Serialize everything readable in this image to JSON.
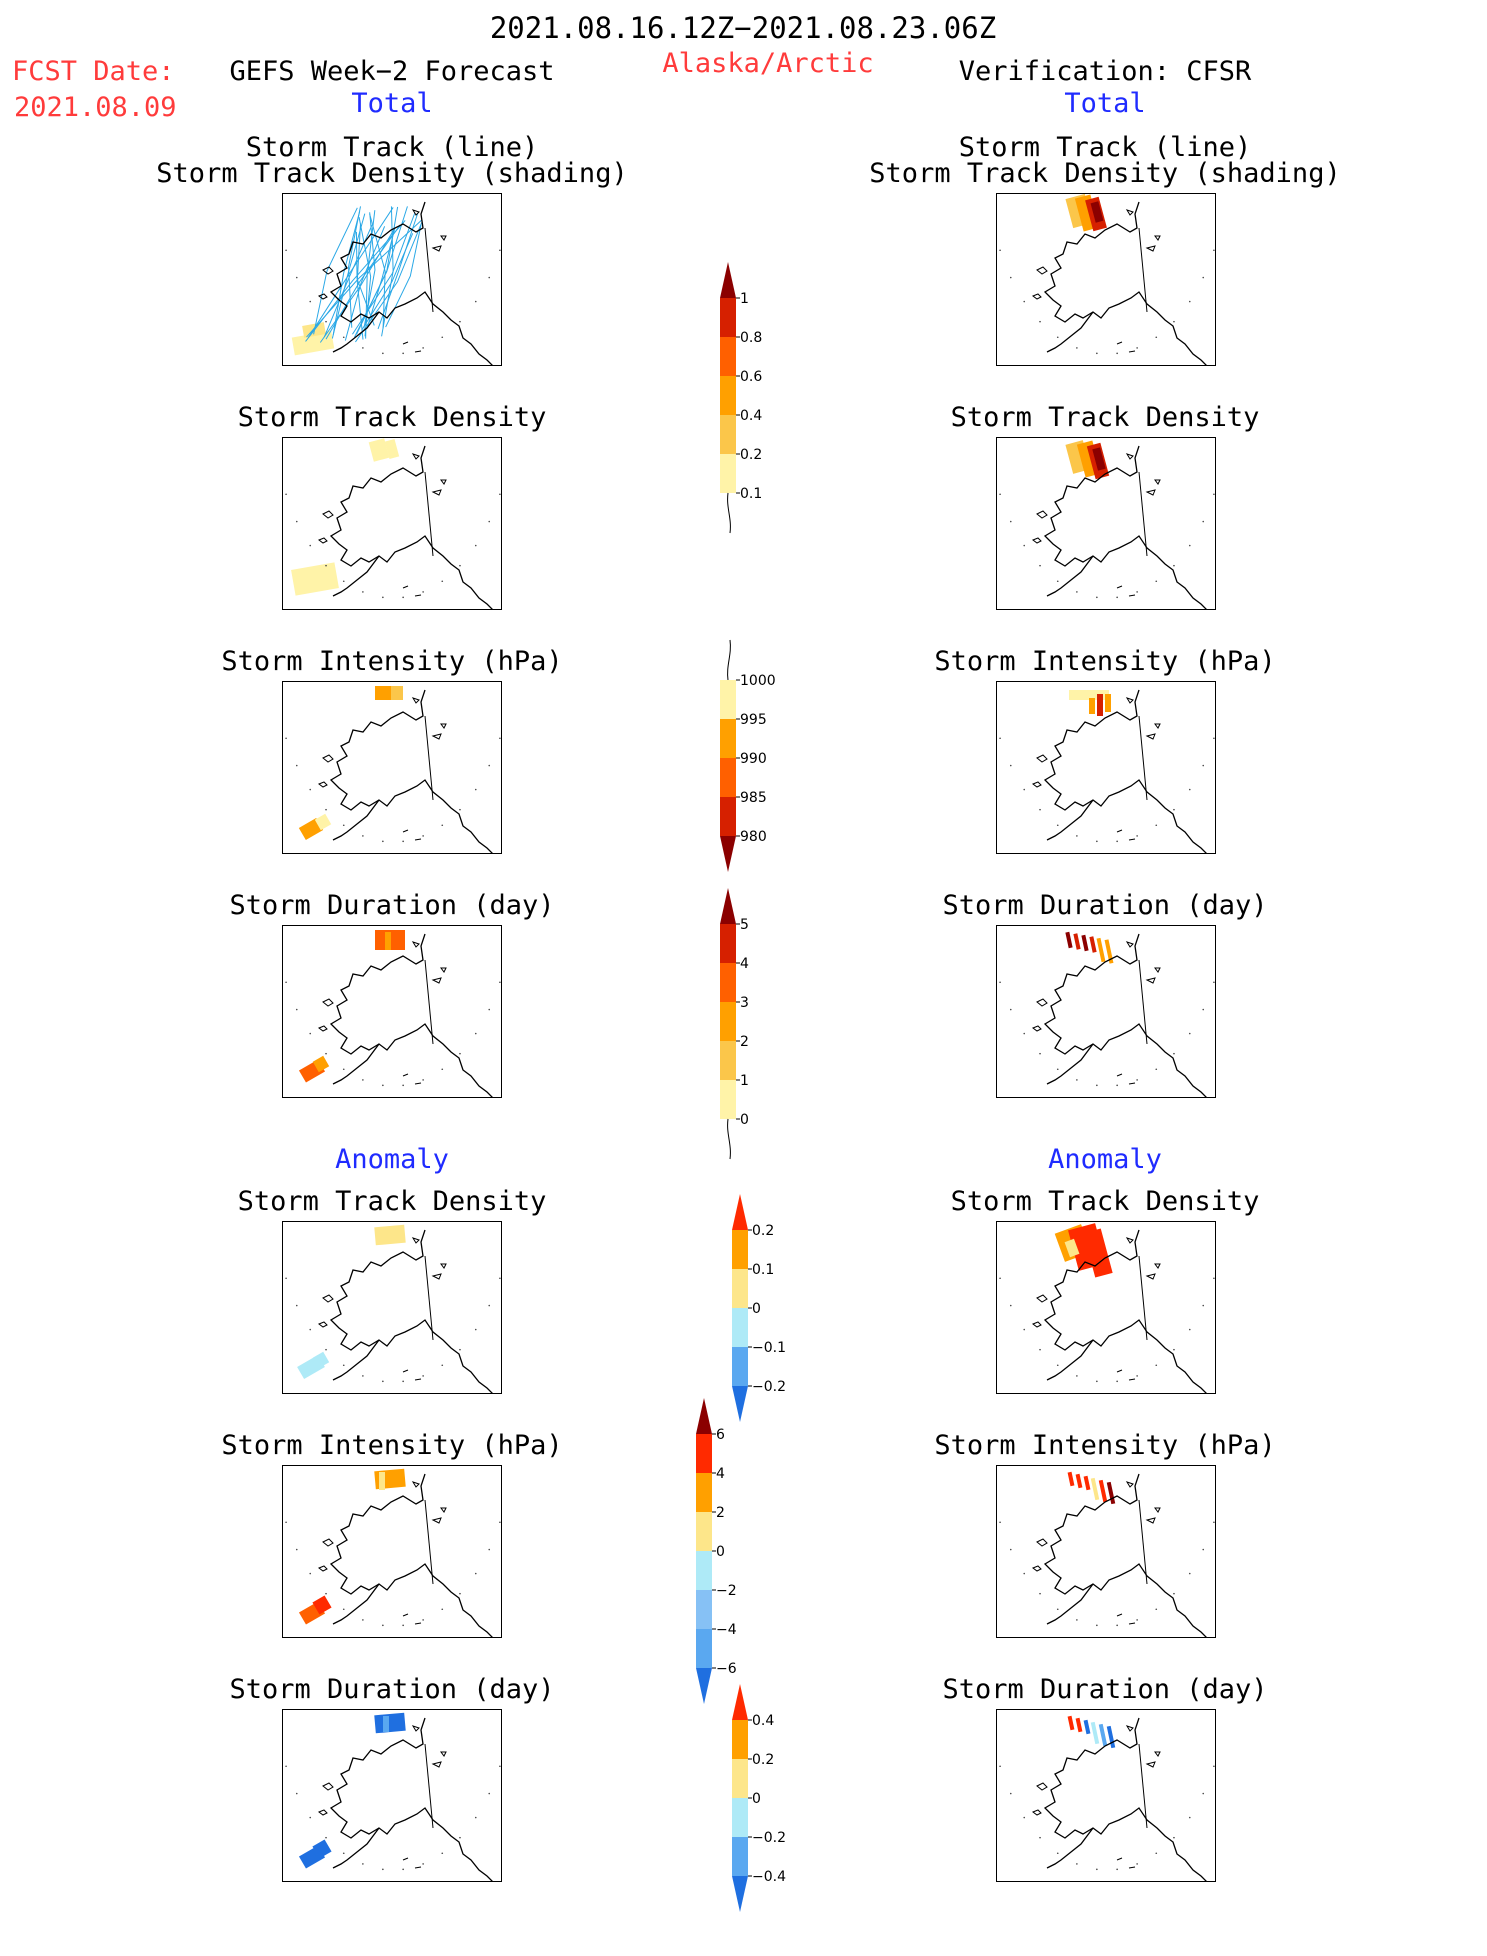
{
  "header": {
    "date_range": "2021.08.16.12Z−2021.08.23.06Z",
    "region": "Alaska/Arctic",
    "fcst_label": "FCST Date:",
    "fcst_date": "2021.08.09",
    "left_title": "GEFS Week−2 Forecast",
    "right_title": "Verification: CFSR"
  },
  "sections": {
    "total": "Total",
    "anomaly": "Anomaly"
  },
  "panel_titles": {
    "track_line": "Storm Track (line)",
    "track_shading": "Storm Track Density (shading)",
    "density": "Storm Track Density",
    "intensity": "Storm Intensity (hPa)",
    "duration": "Storm Duration (day)"
  },
  "colorbars": {
    "density_total": {
      "labels": [
        "1",
        "0.8",
        "0.6",
        "0.4",
        "0.2",
        "0.1"
      ],
      "colors": [
        "#8b0000",
        "#d62000",
        "#ff6000",
        "#ffa000",
        "#fbc64a",
        "#fff3a8"
      ]
    },
    "intensity_total": {
      "labels": [
        "1000",
        "995",
        "990",
        "985",
        "980"
      ],
      "colors": [
        "#fff3a8",
        "#ffa000",
        "#ff6000",
        "#d62000",
        "#8b0000"
      ]
    },
    "duration_total": {
      "labels": [
        "5",
        "4",
        "3",
        "2",
        "1",
        "0"
      ],
      "colors": [
        "#8b0000",
        "#d62000",
        "#ff6000",
        "#ffa000",
        "#fbc64a",
        "#fff3a8"
      ]
    },
    "density_anom": {
      "labels": [
        "0.2",
        "0.1",
        "0",
        "−0.1",
        "−0.2"
      ],
      "colors": [
        "#ff2a00",
        "#ffa000",
        "#fde68a",
        "#aeeaf7",
        "#5aa8f0",
        "#1f6fe0"
      ]
    },
    "intensity_anom": {
      "labels": [
        "6",
        "4",
        "2",
        "0",
        "−2",
        "−4",
        "−6"
      ],
      "colors": [
        "#8b0000",
        "#ff2a00",
        "#ffa000",
        "#fde68a",
        "#aeeaf7",
        "#86c1f5",
        "#5aa8f0",
        "#1f6fe0"
      ]
    },
    "duration_anom": {
      "labels": [
        "0.4",
        "0.2",
        "0",
        "−0.2",
        "−0.4"
      ],
      "colors": [
        "#ff2a00",
        "#ffa000",
        "#fde68a",
        "#aeeaf7",
        "#5aa8f0",
        "#1f6fe0"
      ]
    }
  },
  "colors": {
    "header_red": "#ff3b3b",
    "section_blue": "#1f2bff",
    "track_line": "#2aa8e6"
  }
}
